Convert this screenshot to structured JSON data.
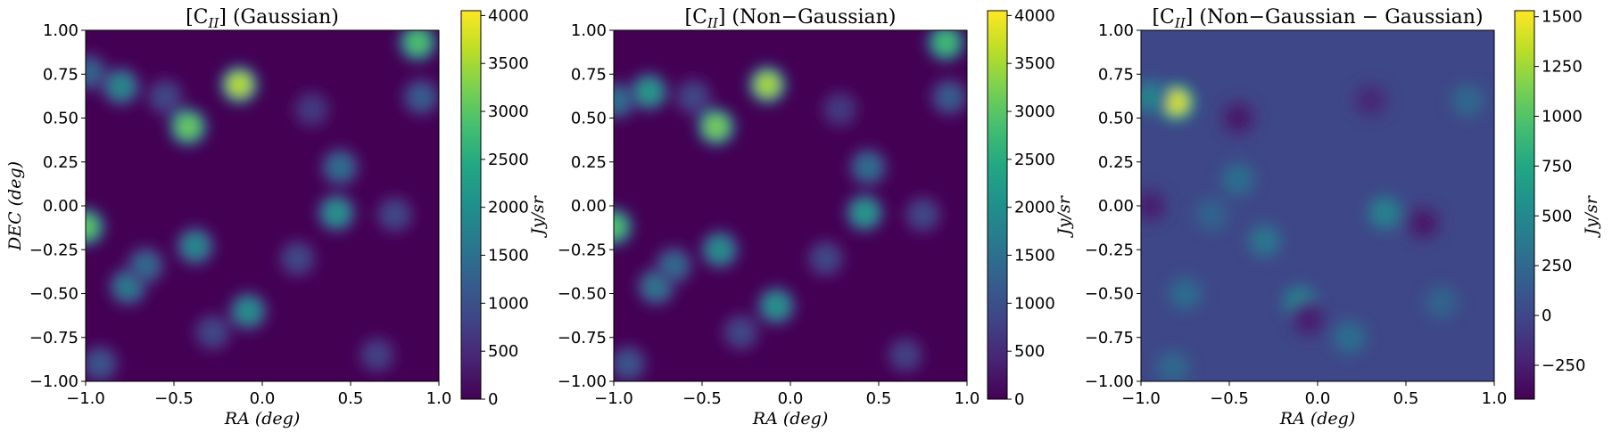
{
  "figure": {
    "background": "#ffffff"
  },
  "colormap": "viridis",
  "chart_data": [
    {
      "type": "heatmap",
      "title": "[C_II] (Gaussian)",
      "title_parts": {
        "pre": "[C",
        "sub": "II",
        "post": "] (Gaussian)"
      },
      "xlabel": "RA (deg)",
      "ylabel": "DEC (deg)",
      "xlim": [
        -1.0,
        1.0
      ],
      "ylim": [
        -1.0,
        1.0
      ],
      "xticks": [
        "−1.0",
        "−0.5",
        "0.0",
        "0.5",
        "1.0"
      ],
      "xtick_values": [
        -1.0,
        -0.5,
        0.0,
        0.5,
        1.0
      ],
      "yticks": [
        "1.00",
        "0.75",
        "0.50",
        "0.25",
        "0.00",
        "−0.25",
        "−0.50",
        "−0.75",
        "−1.00"
      ],
      "ytick_values": [
        1.0,
        0.75,
        0.5,
        0.25,
        0.0,
        -0.25,
        -0.5,
        -0.75,
        -1.0
      ],
      "colorbar": {
        "label": "Jy/sr",
        "range": [
          0,
          4050
        ],
        "ticks": [
          "4000",
          "3500",
          "3000",
          "2500",
          "2000",
          "1500",
          "1000",
          "500",
          "0"
        ],
        "tick_values": [
          4000,
          3500,
          3000,
          2500,
          2000,
          1500,
          1000,
          500,
          0
        ]
      },
      "peaks": [
        {
          "ra": -0.42,
          "dec": 0.45,
          "value": 3100
        },
        {
          "ra": -0.13,
          "dec": 0.69,
          "value": 3600
        },
        {
          "ra": 0.88,
          "dec": 0.93,
          "value": 2900
        },
        {
          "ra": -1.0,
          "dec": -0.12,
          "value": 3000
        },
        {
          "ra": -0.8,
          "dec": 0.68,
          "value": 1900
        },
        {
          "ra": -0.98,
          "dec": 0.76,
          "value": 1300
        },
        {
          "ra": -0.38,
          "dec": -0.23,
          "value": 1900
        },
        {
          "ra": -0.76,
          "dec": -0.46,
          "value": 1700
        },
        {
          "ra": -0.08,
          "dec": -0.6,
          "value": 2000
        },
        {
          "ra": 0.42,
          "dec": -0.04,
          "value": 2100
        },
        {
          "ra": 0.44,
          "dec": 0.22,
          "value": 1500
        },
        {
          "ra": -0.66,
          "dec": -0.34,
          "value": 1400
        },
        {
          "ra": 0.9,
          "dec": 0.62,
          "value": 1200
        },
        {
          "ra": -0.92,
          "dec": -0.9,
          "value": 1100
        },
        {
          "ra": 0.2,
          "dec": -0.3,
          "value": 900
        },
        {
          "ra": 0.75,
          "dec": -0.05,
          "value": 900
        },
        {
          "ra": -0.55,
          "dec": 0.62,
          "value": 900
        },
        {
          "ra": 0.65,
          "dec": -0.85,
          "value": 800
        },
        {
          "ra": -0.28,
          "dec": -0.72,
          "value": 900
        },
        {
          "ra": 0.28,
          "dec": 0.55,
          "value": 700
        }
      ]
    },
    {
      "type": "heatmap",
      "title": "[C_II] (Non−Gaussian)",
      "title_parts": {
        "pre": "[C",
        "sub": "II",
        "post": "] (Non−Gaussian)"
      },
      "xlabel": "RA (deg)",
      "ylabel": "",
      "xlim": [
        -1.0,
        1.0
      ],
      "ylim": [
        -1.0,
        1.0
      ],
      "xticks": [
        "−1.0",
        "−0.5",
        "0.0",
        "0.5",
        "1.0"
      ],
      "xtick_values": [
        -1.0,
        -0.5,
        0.0,
        0.5,
        1.0
      ],
      "yticks": [
        "1.00",
        "0.75",
        "0.50",
        "0.25",
        "0.00",
        "−0.25",
        "−0.50",
        "−0.75",
        "−1.00"
      ],
      "ytick_values": [
        1.0,
        0.75,
        0.5,
        0.25,
        0.0,
        -0.25,
        -0.5,
        -0.75,
        -1.0
      ],
      "colorbar": {
        "label": "Jy/sr",
        "range": [
          0,
          4050
        ],
        "ticks": [
          "4000",
          "3500",
          "3000",
          "2500",
          "2000",
          "1500",
          "1000",
          "500",
          "0"
        ],
        "tick_values": [
          4000,
          3500,
          3000,
          2500,
          2000,
          1500,
          1000,
          500,
          0
        ]
      },
      "peaks": [
        {
          "ra": -0.42,
          "dec": 0.45,
          "value": 3200
        },
        {
          "ra": -0.13,
          "dec": 0.69,
          "value": 3500
        },
        {
          "ra": 0.88,
          "dec": 0.93,
          "value": 2800
        },
        {
          "ra": -1.0,
          "dec": -0.12,
          "value": 2900
        },
        {
          "ra": -0.8,
          "dec": 0.65,
          "value": 2200
        },
        {
          "ra": -0.98,
          "dec": 0.6,
          "value": 1500
        },
        {
          "ra": -0.4,
          "dec": -0.25,
          "value": 2000
        },
        {
          "ra": -0.76,
          "dec": -0.46,
          "value": 1600
        },
        {
          "ra": -0.08,
          "dec": -0.57,
          "value": 2100
        },
        {
          "ra": 0.42,
          "dec": -0.04,
          "value": 2200
        },
        {
          "ra": 0.44,
          "dec": 0.22,
          "value": 1500
        },
        {
          "ra": -0.66,
          "dec": -0.34,
          "value": 1400
        },
        {
          "ra": 0.9,
          "dec": 0.62,
          "value": 1200
        },
        {
          "ra": -0.92,
          "dec": -0.9,
          "value": 1100
        },
        {
          "ra": 0.2,
          "dec": -0.3,
          "value": 900
        },
        {
          "ra": 0.75,
          "dec": -0.05,
          "value": 900
        },
        {
          "ra": -0.55,
          "dec": 0.62,
          "value": 900
        },
        {
          "ra": 0.65,
          "dec": -0.85,
          "value": 800
        },
        {
          "ra": -0.28,
          "dec": -0.72,
          "value": 900
        },
        {
          "ra": 0.28,
          "dec": 0.55,
          "value": 700
        }
      ]
    },
    {
      "type": "heatmap",
      "title": "[C_II] (Non−Gaussian − Gaussian)",
      "title_parts": {
        "pre": "[C",
        "sub": "II",
        "post": "] (Non−Gaussian − Gaussian)"
      },
      "xlabel": "RA (deg)",
      "ylabel": "",
      "xlim": [
        -1.0,
        1.0
      ],
      "ylim": [
        -1.0,
        1.0
      ],
      "xticks": [
        "−1.0",
        "−0.5",
        "0.0",
        "0.5",
        "1.0"
      ],
      "xtick_values": [
        -1.0,
        -0.5,
        0.0,
        0.5,
        1.0
      ],
      "yticks": [
        "1.00",
        "0.75",
        "0.50",
        "0.25",
        "0.00",
        "−0.25",
        "−0.50",
        "−0.75",
        "−1.00"
      ],
      "ytick_values": [
        1.0,
        0.75,
        0.5,
        0.25,
        0.0,
        -0.25,
        -0.5,
        -0.75,
        -1.0
      ],
      "colorbar": {
        "label": "Jy/sr",
        "range": [
          -420,
          1530
        ],
        "ticks": [
          "1500",
          "1250",
          "1000",
          "750",
          "500",
          "250",
          "0",
          "−250"
        ],
        "tick_values": [
          1500,
          1250,
          1000,
          750,
          500,
          250,
          0,
          -250
        ]
      },
      "peaks": [
        {
          "ra": -0.8,
          "dec": 0.59,
          "value": 1400
        },
        {
          "ra": -0.95,
          "dec": 0.62,
          "value": 450
        },
        {
          "ra": 0.38,
          "dec": -0.04,
          "value": 450
        },
        {
          "ra": -0.1,
          "dec": -0.55,
          "value": 450
        },
        {
          "ra": -0.3,
          "dec": -0.2,
          "value": 350
        },
        {
          "ra": 0.18,
          "dec": -0.75,
          "value": 300
        },
        {
          "ra": -0.45,
          "dec": 0.15,
          "value": 300
        },
        {
          "ra": -0.75,
          "dec": -0.5,
          "value": 280
        },
        {
          "ra": -0.82,
          "dec": -0.92,
          "value": 250
        },
        {
          "ra": 0.85,
          "dec": 0.6,
          "value": 250
        },
        {
          "ra": 0.6,
          "dec": -0.1,
          "value": -300
        },
        {
          "ra": -0.45,
          "dec": 0.5,
          "value": -300
        },
        {
          "ra": -0.05,
          "dec": -0.65,
          "value": -250
        },
        {
          "ra": 0.3,
          "dec": 0.6,
          "value": -200
        },
        {
          "ra": -0.95,
          "dec": 0.0,
          "value": -250
        },
        {
          "ra": 0.7,
          "dec": -0.55,
          "value": 220
        },
        {
          "ra": -0.6,
          "dec": -0.05,
          "value": 200
        }
      ]
    }
  ]
}
